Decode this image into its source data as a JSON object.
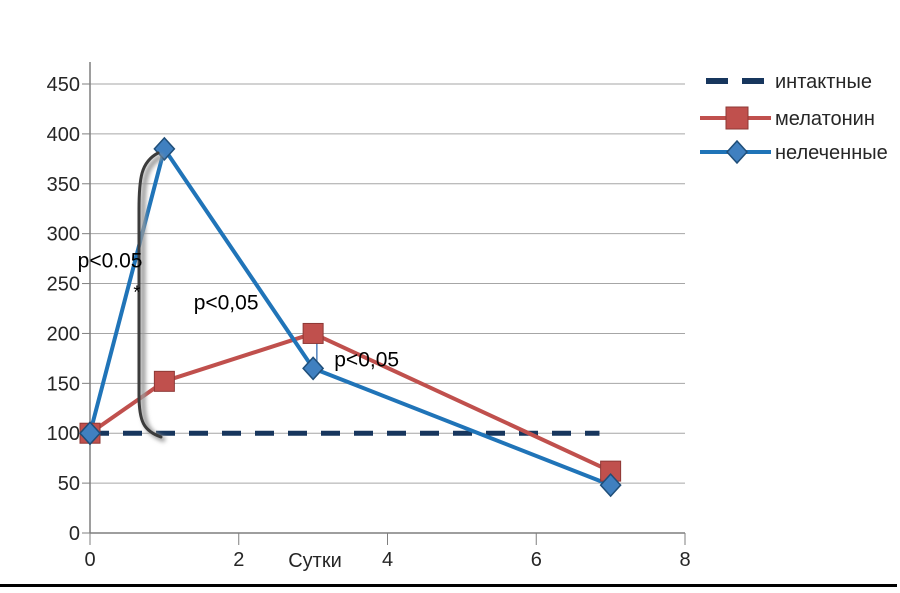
{
  "chart_data": {
    "type": "line",
    "title": "",
    "xlabel": "Сутки",
    "ylabel": "",
    "xlim": [
      0,
      8
    ],
    "ylim": [
      0,
      450
    ],
    "x_ticks": [
      0,
      2,
      4,
      6,
      8
    ],
    "y_ticks": [
      0,
      50,
      100,
      150,
      200,
      250,
      300,
      350,
      400,
      450
    ],
    "grid": "horizontal",
    "legend_position": "right",
    "series": [
      {
        "name": "интактные",
        "type": "dashed",
        "color": "#17365D",
        "x": [
          0,
          6.85
        ],
        "values": [
          100,
          100
        ]
      },
      {
        "name": "мелатонин",
        "type": "solid",
        "color": "#C0504D",
        "marker": "square",
        "marker_fill": "#C0504D",
        "marker_stroke": "#8E3835",
        "x": [
          0,
          1,
          3,
          7
        ],
        "values": [
          100,
          152,
          200,
          62
        ]
      },
      {
        "name": "нелеченные",
        "type": "solid",
        "color": "#2074B8",
        "marker": "diamond",
        "marker_fill": "#4080C0",
        "marker_stroke": "#1F4E79",
        "x": [
          0,
          1,
          3,
          7
        ],
        "values": [
          100,
          385,
          165,
          48
        ]
      }
    ],
    "annotations": [
      {
        "text": "p<0.05",
        "x": 0.27,
        "y": 273,
        "kind": "p-value"
      },
      {
        "text": "*",
        "x": 0.63,
        "y": 242,
        "kind": "star"
      },
      {
        "text": "p<0,05",
        "x": 1.83,
        "y": 231,
        "kind": "p-value"
      },
      {
        "text": "p<0,05",
        "x": 3.72,
        "y": 174,
        "kind": "p-value"
      }
    ],
    "connector": {
      "x": 3.05,
      "from": 201,
      "to": 165,
      "color": "#4F81BD"
    },
    "colors": {
      "grid": "#A6A6A6",
      "axis": "#7F7F7F",
      "text": "#262626"
    }
  }
}
